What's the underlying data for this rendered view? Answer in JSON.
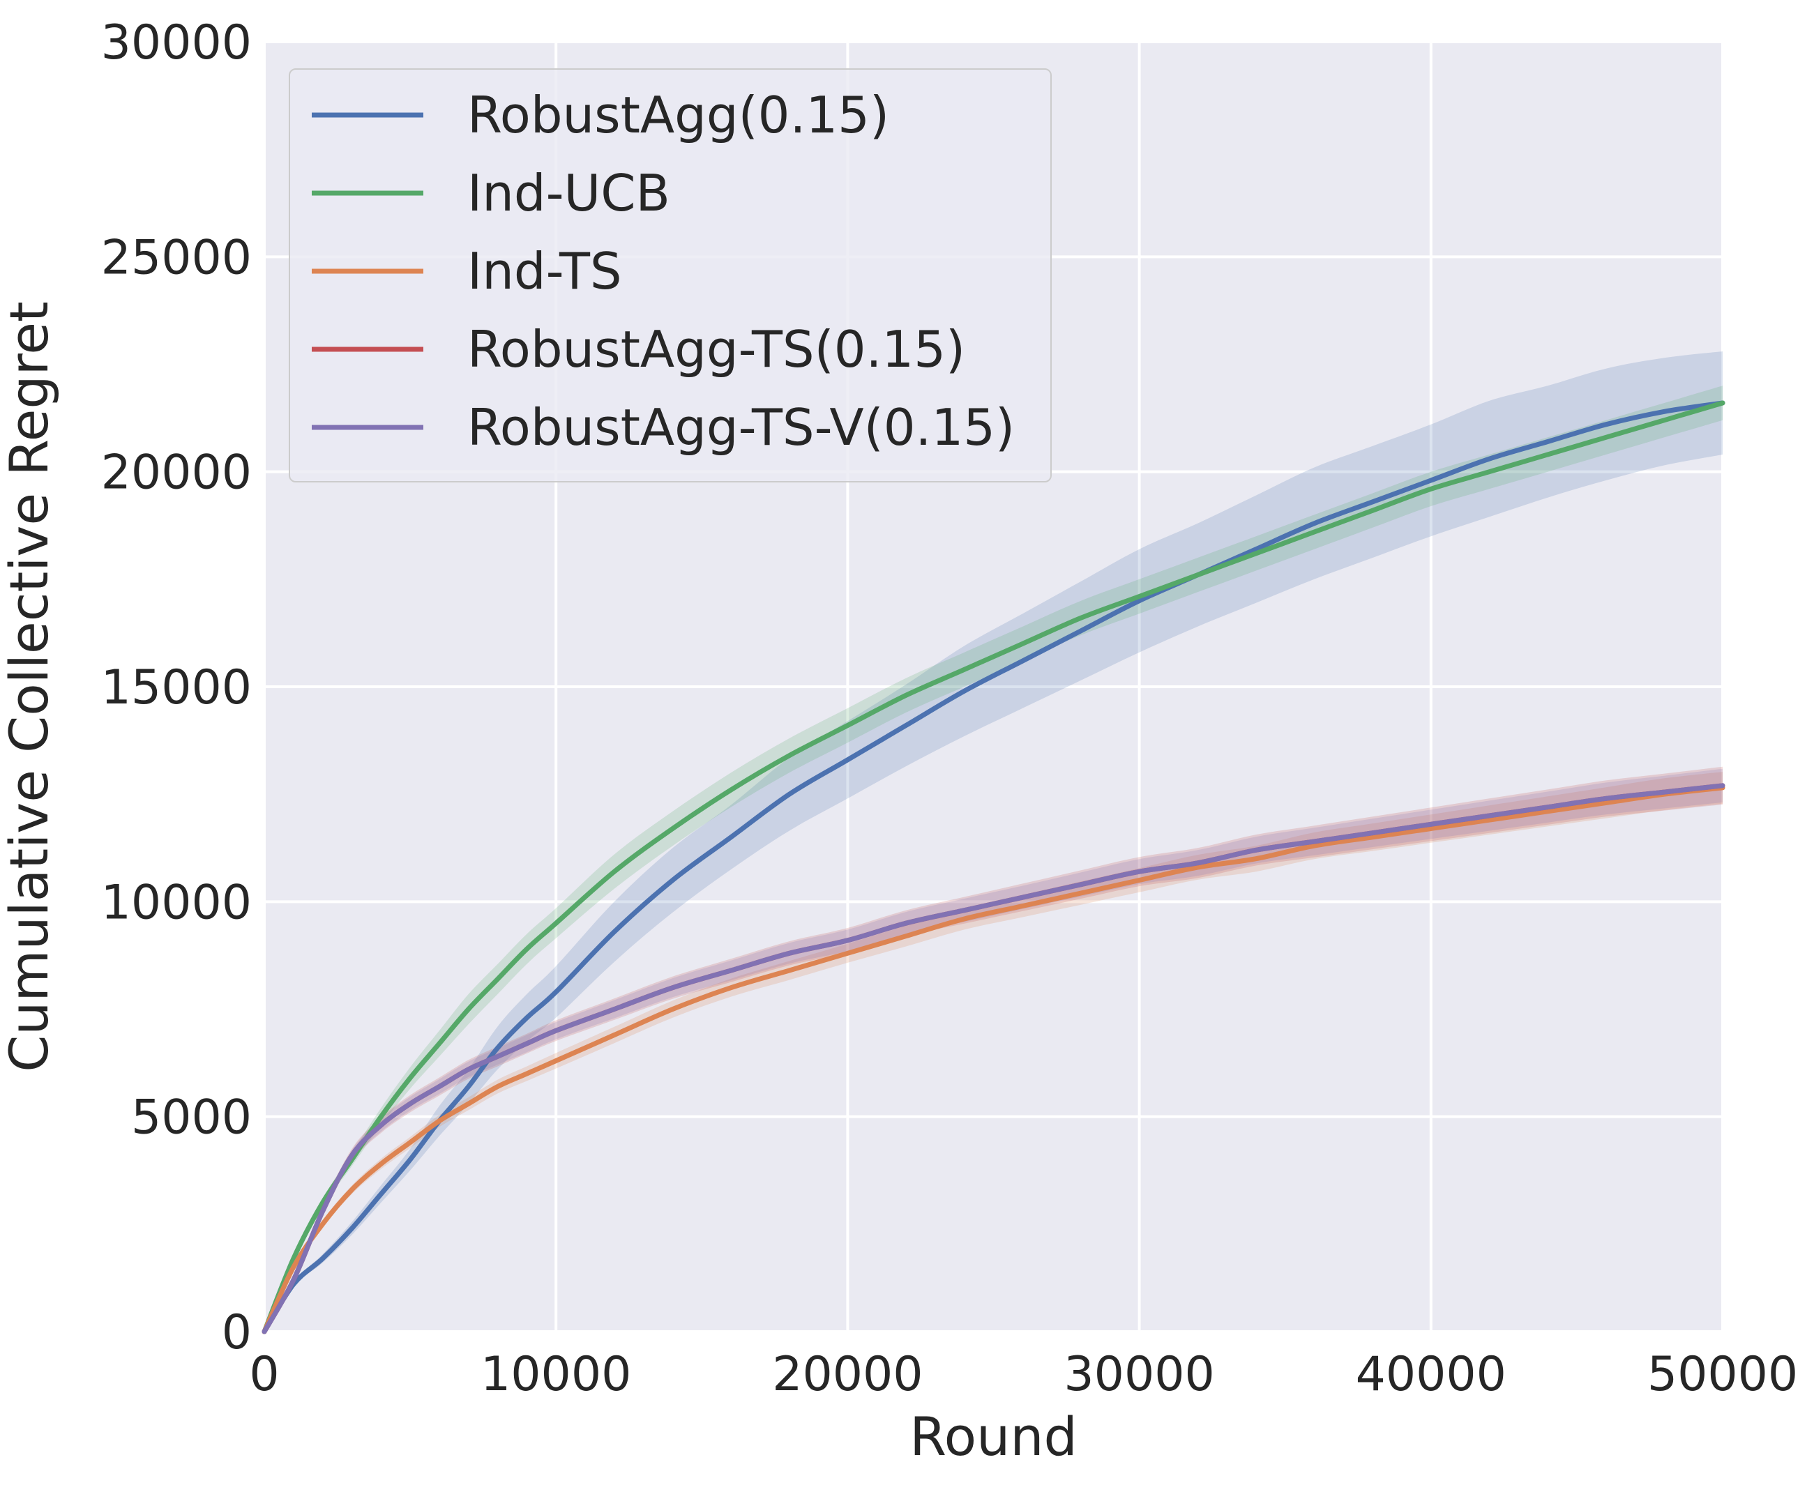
{
  "chart_data": {
    "type": "line",
    "title": "",
    "xlabel": "Round",
    "ylabel": "Cumulative Collective Regret",
    "xlim": [
      0,
      50000
    ],
    "ylim": [
      0,
      30000
    ],
    "xticks": [
      0,
      10000,
      20000,
      30000,
      40000,
      50000
    ],
    "yticks": [
      0,
      5000,
      10000,
      15000,
      20000,
      25000,
      30000
    ],
    "grid": true,
    "legend_position": "top-left",
    "background_color": "#EAEAF2",
    "series": [
      {
        "name": "RobustAgg(0.15)",
        "color": "#4C72B0",
        "x": [
          0,
          1000,
          2000,
          3000,
          4000,
          5000,
          6000,
          7000,
          8000,
          9000,
          10000,
          12000,
          14000,
          16000,
          18000,
          20000,
          22000,
          24000,
          26000,
          28000,
          30000,
          32000,
          34000,
          36000,
          38000,
          40000,
          42000,
          44000,
          46000,
          48000,
          50000
        ],
        "y": [
          0,
          1100,
          1700,
          2400,
          3200,
          4000,
          4900,
          5700,
          6600,
          7300,
          7900,
          9300,
          10500,
          11500,
          12500,
          13300,
          14100,
          14900,
          15600,
          16300,
          17000,
          17600,
          18200,
          18800,
          19300,
          19800,
          20300,
          20700,
          21100,
          21400,
          21600
        ],
        "lower": [
          0,
          1050,
          1600,
          2250,
          3000,
          3750,
          4550,
          5300,
          6100,
          6750,
          7300,
          8600,
          9750,
          10750,
          11650,
          12400,
          13150,
          13850,
          14500,
          15150,
          15800,
          16400,
          16950,
          17500,
          18000,
          18500,
          18950,
          19400,
          19800,
          20150,
          20400
        ],
        "upper": [
          0,
          1150,
          1800,
          2550,
          3400,
          4250,
          5250,
          6100,
          7100,
          7850,
          8500,
          10000,
          11250,
          12250,
          13350,
          14200,
          15050,
          15950,
          16700,
          17450,
          18200,
          18800,
          19450,
          20100,
          20600,
          21100,
          21650,
          22000,
          22400,
          22650,
          22800
        ]
      },
      {
        "name": "Ind-UCB",
        "color": "#55A868",
        "x": [
          0,
          1000,
          2000,
          3000,
          4000,
          5000,
          6000,
          7000,
          8000,
          9000,
          10000,
          12000,
          14000,
          16000,
          18000,
          20000,
          22000,
          24000,
          26000,
          28000,
          30000,
          32000,
          34000,
          36000,
          38000,
          40000,
          42000,
          44000,
          46000,
          48000,
          50000
        ],
        "y": [
          0,
          1700,
          3000,
          4000,
          5000,
          5900,
          6700,
          7500,
          8200,
          8900,
          9500,
          10700,
          11700,
          12600,
          13400,
          14100,
          14800,
          15400,
          16000,
          16600,
          17100,
          17600,
          18100,
          18600,
          19100,
          19600,
          20000,
          20400,
          20800,
          21200,
          21600
        ],
        "lower": [
          0,
          1650,
          2900,
          3850,
          4800,
          5650,
          6400,
          7150,
          7850,
          8550,
          9150,
          10300,
          11300,
          12200,
          13000,
          13700,
          14400,
          15000,
          15600,
          16200,
          16700,
          17200,
          17700,
          18200,
          18700,
          19200,
          19600,
          20000,
          20400,
          20800,
          21200
        ],
        "upper": [
          0,
          1750,
          3100,
          4150,
          5200,
          6150,
          7000,
          7850,
          8550,
          9250,
          9850,
          11100,
          12100,
          13000,
          13800,
          14500,
          15200,
          15800,
          16400,
          17000,
          17500,
          18000,
          18500,
          19000,
          19500,
          20000,
          20400,
          20800,
          21200,
          21600,
          22000
        ]
      },
      {
        "name": "Ind-TS",
        "color": "#DD8452",
        "x": [
          0,
          1000,
          2000,
          3000,
          4000,
          5000,
          6000,
          7000,
          8000,
          9000,
          10000,
          12000,
          14000,
          16000,
          18000,
          20000,
          22000,
          24000,
          26000,
          28000,
          30000,
          32000,
          34000,
          36000,
          38000,
          40000,
          42000,
          44000,
          46000,
          48000,
          50000
        ],
        "y": [
          0,
          1500,
          2500,
          3300,
          3900,
          4400,
          4900,
          5300,
          5700,
          6000,
          6300,
          6900,
          7500,
          8000,
          8400,
          8800,
          9200,
          9600,
          9900,
          10200,
          10500,
          10800,
          11000,
          11300,
          11500,
          11700,
          11900,
          12100,
          12300,
          12500,
          12650
        ],
        "lower": [
          0,
          1450,
          2420,
          3200,
          3780,
          4270,
          4760,
          5150,
          5540,
          5830,
          6120,
          6710,
          7300,
          7790,
          8180,
          8580,
          8960,
          9350,
          9640,
          9930,
          10220,
          10510,
          10700,
          10990,
          11180,
          11370,
          11560,
          11750,
          11940,
          12130,
          12280
        ],
        "upper": [
          0,
          1550,
          2580,
          3400,
          4020,
          4530,
          5040,
          5450,
          5860,
          6170,
          6480,
          7090,
          7700,
          8210,
          8620,
          9020,
          9440,
          9850,
          10160,
          10470,
          10780,
          11090,
          11300,
          11610,
          11820,
          12030,
          12240,
          12450,
          12660,
          12870,
          13020
        ]
      },
      {
        "name": "RobustAgg-TS(0.15)",
        "color": "#C44E52",
        "x": [
          0,
          1000,
          2000,
          3000,
          4000,
          5000,
          6000,
          7000,
          8000,
          9000,
          10000,
          12000,
          14000,
          16000,
          18000,
          20000,
          22000,
          24000,
          26000,
          28000,
          30000,
          32000,
          34000,
          36000,
          38000,
          40000,
          42000,
          44000,
          46000,
          48000,
          50000
        ],
        "y": [
          0,
          1200,
          2800,
          4100,
          4800,
          5300,
          5700,
          6100,
          6400,
          6700,
          7000,
          7500,
          8000,
          8400,
          8800,
          9100,
          9500,
          9800,
          10100,
          10400,
          10700,
          10900,
          11200,
          11400,
          11600,
          11800,
          12000,
          12200,
          12400,
          12550,
          12700
        ],
        "lower": [
          0,
          1150,
          2700,
          3950,
          4620,
          5100,
          5490,
          5880,
          6170,
          6470,
          6760,
          7250,
          7740,
          8130,
          8520,
          8810,
          9200,
          9490,
          9780,
          10070,
          10360,
          10550,
          10840,
          11030,
          11220,
          11410,
          11600,
          11790,
          11980,
          12120,
          12260
        ],
        "upper": [
          0,
          1250,
          2900,
          4250,
          4980,
          5500,
          5910,
          6320,
          6630,
          6930,
          7240,
          7750,
          8260,
          8670,
          9080,
          9390,
          9800,
          10110,
          10420,
          10730,
          11040,
          11250,
          11560,
          11770,
          11980,
          12190,
          12400,
          12610,
          12820,
          12980,
          13140
        ]
      },
      {
        "name": "RobustAgg-TS-V(0.15)",
        "color": "#8172B3",
        "x": [
          0,
          1000,
          2000,
          3000,
          4000,
          5000,
          6000,
          7000,
          8000,
          9000,
          10000,
          12000,
          14000,
          16000,
          18000,
          20000,
          22000,
          24000,
          26000,
          28000,
          30000,
          32000,
          34000,
          36000,
          38000,
          40000,
          42000,
          44000,
          46000,
          48000,
          50000
        ],
        "y": [
          0,
          1200,
          2800,
          4100,
          4800,
          5300,
          5700,
          6100,
          6400,
          6700,
          7000,
          7500,
          8000,
          8400,
          8800,
          9100,
          9500,
          9800,
          10100,
          10400,
          10700,
          10900,
          11200,
          11400,
          11600,
          11800,
          12000,
          12200,
          12400,
          12550,
          12700
        ],
        "lower": [
          0,
          1160,
          2720,
          3980,
          4650,
          5140,
          5530,
          5920,
          6210,
          6500,
          6800,
          7290,
          7780,
          8170,
          8560,
          8850,
          9240,
          9530,
          9830,
          10120,
          10410,
          10600,
          10890,
          11080,
          11270,
          11460,
          11650,
          11840,
          12030,
          12170,
          12310
        ],
        "upper": [
          0,
          1240,
          2880,
          4220,
          4950,
          5460,
          5870,
          6280,
          6590,
          6900,
          7200,
          7710,
          8220,
          8630,
          9040,
          9350,
          9760,
          10070,
          10370,
          10680,
          10990,
          11200,
          11510,
          11720,
          11930,
          12140,
          12350,
          12560,
          12770,
          12930,
          13090
        ]
      }
    ]
  }
}
